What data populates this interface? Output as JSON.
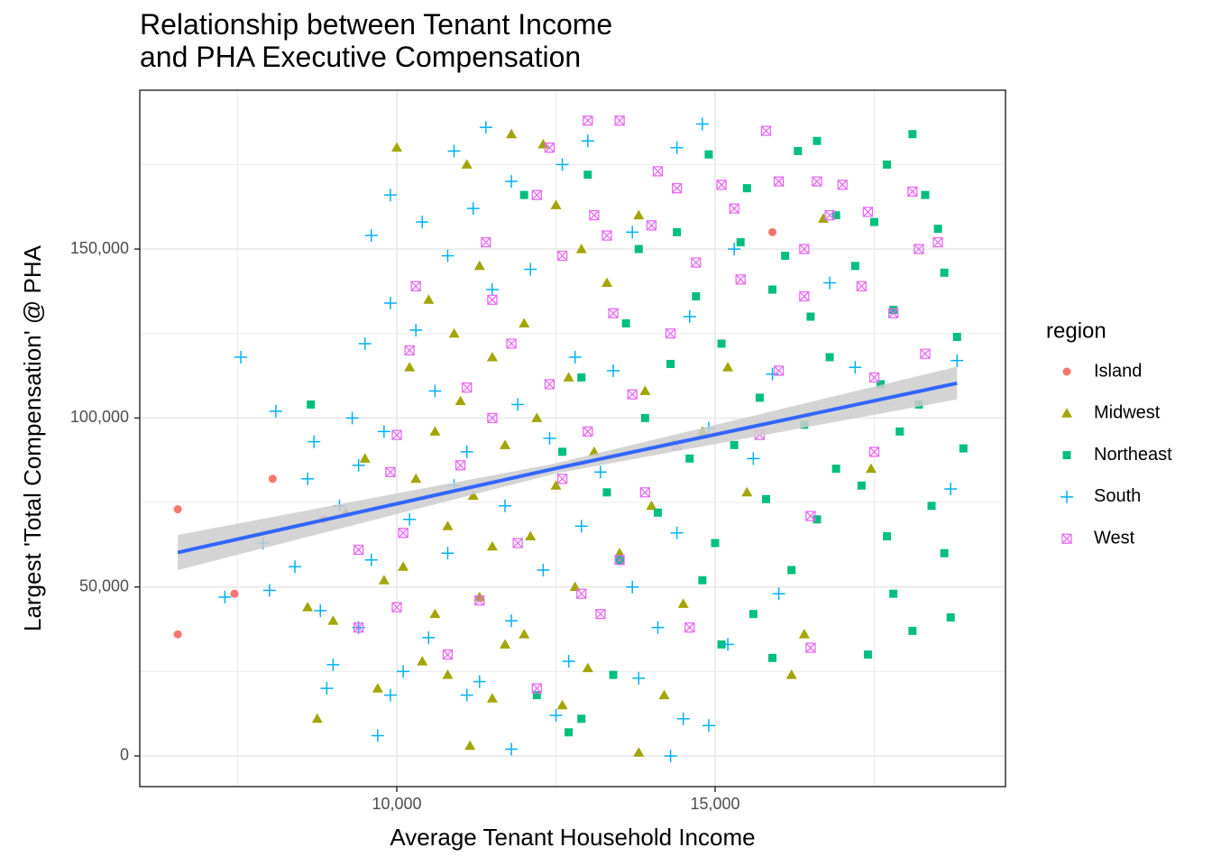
{
  "chart_data": {
    "type": "scatter",
    "title": "Relationship between Tenant Income\nand PHA Executive Compensation",
    "x_label": "Average Tenant Household Income",
    "y_label": "Largest 'Total Compensation' @ PHA",
    "legend_title": "region",
    "legend_position": "right",
    "grid": true,
    "xlim": [
      5963,
      19561
    ],
    "ylim": [
      -9077,
      197000
    ],
    "xticks": [
      {
        "value": 10000,
        "label": "10,000"
      },
      {
        "value": 15000,
        "label": "15,000"
      }
    ],
    "yticks": [
      0,
      {
        "value": 50000,
        "label": "50,000"
      },
      {
        "value": 100000,
        "label": "100,000"
      },
      {
        "value": 150000,
        "label": "150,000"
      }
    ],
    "x_minor_grid": [
      7500,
      12500,
      17500
    ],
    "y_minor_grid": [
      25000,
      75000,
      125000,
      175000
    ],
    "series": [
      {
        "name": "Island",
        "color": "#F8766D",
        "shape": "circle",
        "x": [
          6560,
          6560,
          7450,
          8050,
          8850,
          15900
        ],
        "y": [
          73000,
          36000,
          48000,
          82000,
          70000,
          155000
        ]
      },
      {
        "name": "Midwest",
        "color": "#A3A500",
        "shape": "triangle",
        "x": [
          10000,
          11800,
          12300,
          11100,
          12500,
          13800,
          12900,
          11300,
          10500,
          13300,
          12000,
          10900,
          11500,
          10200,
          12700,
          13900,
          11000,
          12200,
          10600,
          11700,
          13100,
          9500,
          10300,
          12500,
          11200,
          14000,
          9200,
          10800,
          12100,
          11500,
          13500,
          10100,
          9800,
          12800,
          11300,
          14500,
          10600,
          9000,
          12000,
          11700,
          10400,
          13000,
          9700,
          11500,
          8750,
          11150,
          13800,
          14200,
          16400,
          16200,
          17450,
          16700,
          8600,
          15500,
          14800,
          15200,
          10800,
          12600
        ],
        "y": [
          180000,
          184000,
          181000,
          175000,
          163000,
          160000,
          150000,
          145000,
          135000,
          140000,
          128000,
          125000,
          118000,
          115000,
          112000,
          108000,
          105000,
          100000,
          96000,
          92000,
          90000,
          88000,
          82000,
          80000,
          77000,
          74000,
          72000,
          68000,
          65000,
          62000,
          60000,
          56000,
          52000,
          50000,
          47000,
          45000,
          42000,
          40000,
          36000,
          33000,
          28000,
          26000,
          20000,
          17000,
          11000,
          3000,
          1000,
          18000,
          36000,
          24000,
          85000,
          159000,
          44000,
          78000,
          96000,
          115000,
          24000,
          15000
        ]
      },
      {
        "name": "Northeast",
        "color": "#00BF7D",
        "shape": "square",
        "x": [
          8650,
          18100,
          16600,
          16300,
          14900,
          17700,
          13000,
          15500,
          18300,
          12000,
          16900,
          17500,
          14400,
          18500,
          15400,
          13800,
          16100,
          18600,
          17200,
          15900,
          14700,
          16500,
          17800,
          13600,
          15100,
          18800,
          16800,
          14300,
          17600,
          12900,
          15700,
          18200,
          13900,
          16400,
          17900,
          15300,
          18900,
          12600,
          14600,
          16900,
          17300,
          13300,
          15800,
          18400,
          14100,
          16600,
          17700,
          15000,
          18600,
          13500,
          16200,
          14800,
          17800,
          15600,
          18100,
          17400,
          18700,
          15100,
          15900,
          12700,
          12900,
          12200,
          13400
        ],
        "y": [
          104000,
          184000,
          182000,
          179000,
          178000,
          175000,
          172000,
          168000,
          166000,
          166000,
          160000,
          158000,
          155000,
          156000,
          152000,
          150000,
          148000,
          143000,
          145000,
          138000,
          136000,
          130000,
          132000,
          128000,
          122000,
          124000,
          118000,
          116000,
          110000,
          112000,
          106000,
          104000,
          100000,
          98000,
          96000,
          92000,
          91000,
          90000,
          88000,
          85000,
          80000,
          78000,
          76000,
          74000,
          72000,
          70000,
          65000,
          63000,
          60000,
          58000,
          55000,
          52000,
          48000,
          42000,
          37000,
          30000,
          41000,
          33000,
          29000,
          7000,
          11000,
          18000,
          24000
        ]
      },
      {
        "name": "South",
        "color": "#00B0F6",
        "shape": "plus",
        "x": [
          7550,
          11400,
          14800,
          10900,
          13000,
          14400,
          9900,
          11800,
          12600,
          10400,
          11200,
          13700,
          9600,
          15300,
          10800,
          12100,
          9900,
          11500,
          14600,
          9500,
          10300,
          12800,
          16800,
          8100,
          9300,
          10600,
          11900,
          13400,
          15900,
          18800,
          17200,
          8700,
          9800,
          11100,
          12400,
          14900,
          8600,
          9400,
          10900,
          13200,
          15600,
          18700,
          7900,
          9100,
          10200,
          11700,
          12900,
          14400,
          7300,
          8000,
          8400,
          9600,
          10800,
          12300,
          13700,
          16000,
          8800,
          9400,
          10500,
          11800,
          14100,
          15200,
          9000,
          10100,
          11300,
          12700,
          13800,
          8900,
          9900,
          11100,
          9700,
          11800,
          14300,
          14500,
          14900,
          12500
        ],
        "y": [
          118000,
          186000,
          187000,
          179000,
          182000,
          180000,
          166000,
          170000,
          175000,
          158000,
          162000,
          155000,
          154000,
          150000,
          148000,
          144000,
          134000,
          138000,
          130000,
          122000,
          126000,
          118000,
          140000,
          102000,
          100000,
          108000,
          104000,
          114000,
          113000,
          117000,
          115000,
          93000,
          96000,
          90000,
          94000,
          97000,
          82000,
          86000,
          80000,
          84000,
          88000,
          79000,
          63000,
          74000,
          70000,
          74000,
          68000,
          66000,
          47000,
          49000,
          56000,
          58000,
          60000,
          55000,
          50000,
          48000,
          43000,
          38000,
          35000,
          40000,
          38000,
          33000,
          27000,
          25000,
          22000,
          28000,
          23000,
          20000,
          18000,
          18000,
          6000,
          2000,
          0,
          11000,
          9000,
          12000
        ]
      },
      {
        "name": "West",
        "color": "#E76BF3",
        "shape": "boxx",
        "x": [
          13000,
          13500,
          15800,
          12400,
          14100,
          15100,
          16000,
          16600,
          17000,
          18100,
          14400,
          12200,
          13100,
          15300,
          11400,
          16800,
          17400,
          14000,
          18500,
          12600,
          13300,
          14700,
          16400,
          18200,
          10300,
          11500,
          15400,
          16400,
          17300,
          13400,
          17800,
          10200,
          11800,
          14300,
          18300,
          11100,
          12400,
          13700,
          16000,
          17500,
          10000,
          11500,
          13000,
          14400,
          15700,
          17500,
          9900,
          11000,
          12600,
          13900,
          16500,
          9400,
          10100,
          11900,
          13500,
          10000,
          11300,
          12900,
          9400,
          10800,
          12200,
          13200,
          14600,
          16500
        ],
        "y": [
          188000,
          188000,
          185000,
          180000,
          173000,
          169000,
          170000,
          170000,
          169000,
          167000,
          168000,
          166000,
          160000,
          162000,
          152000,
          160000,
          161000,
          157000,
          152000,
          148000,
          154000,
          146000,
          150000,
          150000,
          139000,
          135000,
          141000,
          136000,
          139000,
          131000,
          131000,
          120000,
          122000,
          125000,
          119000,
          109000,
          110000,
          107000,
          114000,
          112000,
          95000,
          100000,
          96000,
          92000,
          95000,
          90000,
          84000,
          86000,
          82000,
          78000,
          71000,
          61000,
          66000,
          63000,
          58000,
          44000,
          46000,
          48000,
          38000,
          30000,
          20000,
          42000,
          38000,
          32000
        ]
      }
    ],
    "trend": {
      "color": "#3366FF",
      "band_color": "#cccccc",
      "x": [
        6560,
        12500,
        18800
      ],
      "y": [
        60200,
        85100,
        110300
      ],
      "lower": [
        55000,
        83600,
        105500
      ],
      "upper": [
        65400,
        86600,
        115200
      ]
    }
  }
}
